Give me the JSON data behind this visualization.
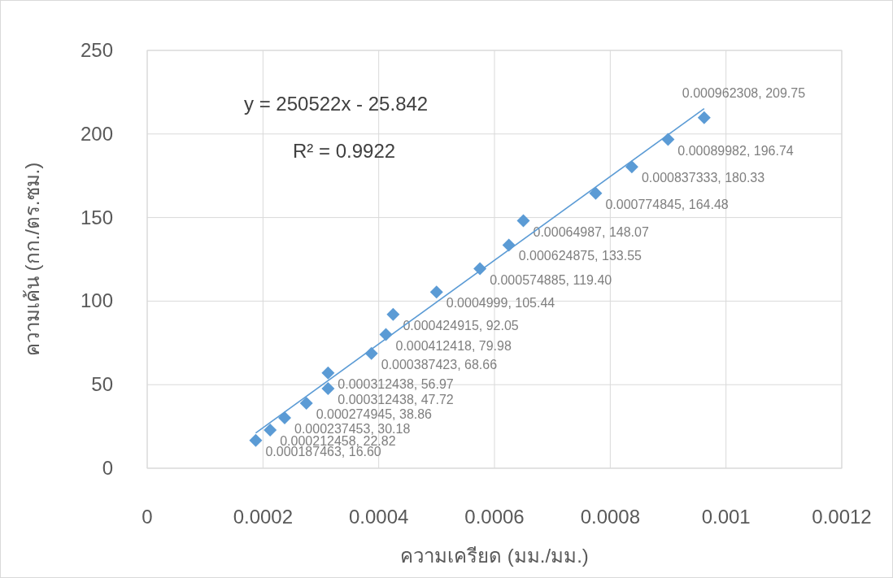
{
  "chart_data": {
    "type": "scatter",
    "xlabel": "ความเครียด (มม./มม.)",
    "ylabel": "ความเค้น (กก./ตร.ซม.)",
    "xlim": [
      0,
      0.0012
    ],
    "xticks": [
      0,
      0.0002,
      0.0004,
      0.0006,
      0.0008,
      0.001,
      0.0012
    ],
    "ylim": [
      0,
      250
    ],
    "yticks": [
      0,
      50,
      100,
      150,
      200,
      250
    ],
    "grid": true,
    "annotations": [
      "y = 250522x - 25.842",
      "R² = 0.9922"
    ],
    "series": [
      {
        "color": "#5b9bd5",
        "marker": "diamond",
        "x": [
          0.000187463,
          0.000212458,
          0.000237453,
          0.000274945,
          0.000312438,
          0.000312438,
          0.000387423,
          0.000412418,
          0.000424915,
          0.0004999,
          0.000574885,
          0.000624875,
          0.00064987,
          0.000774845,
          0.000837333,
          0.00089982,
          0.000962308
        ],
        "values": [
          16.6,
          22.82,
          30.18,
          38.86,
          47.72,
          56.97,
          68.66,
          79.98,
          92.05,
          105.44,
          119.4,
          133.55,
          148.07,
          164.48,
          180.33,
          196.74,
          209.75
        ],
        "value_labels": [
          "0.000187463, 16.60",
          "0.000212458, 22.82",
          "0.000237453, 30.18",
          "0.000274945, 38.86",
          "0.000312438, 47.72",
          "0.000312438, 56.97",
          "0.000387423, 68.66",
          "0.000412418, 79.98",
          "0.000424915, 92.05",
          "0.0004999, 105.44",
          "0.000574885, 119.40",
          "0.000624875, 133.55",
          "0.00064987, 148.07",
          "0.000774845, 164.48",
          "0.000837333, 180.33",
          "0.00089982, 196.74",
          "0.000962308, 209.75"
        ]
      },
      {
        "type": "line",
        "color": "#5b9bd5",
        "x": [
          0.000187463,
          0.000962308
        ],
        "values": [
          21.1,
          215.2
        ]
      }
    ]
  }
}
